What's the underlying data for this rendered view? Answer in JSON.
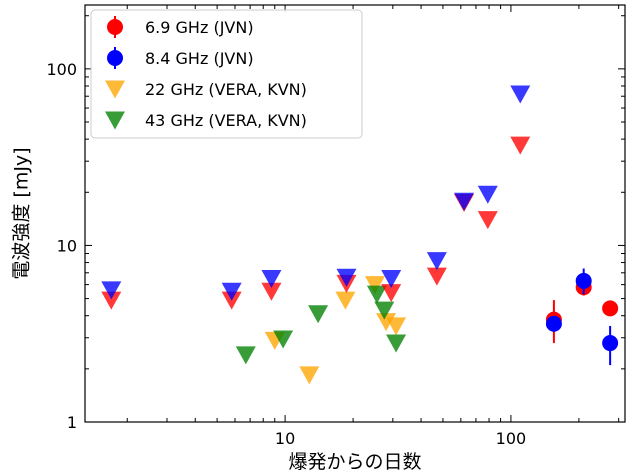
{
  "chart_data": {
    "type": "scatter",
    "xscale": "log",
    "yscale": "log",
    "xlim": [
      1.3,
      320
    ],
    "ylim": [
      1,
      230
    ],
    "xlabel": "爆発からの日数",
    "ylabel": "電波強度 [mJy]",
    "grid": false,
    "legend_position": "top-left",
    "x_ticks": [
      {
        "value": 10,
        "label": "10"
      },
      {
        "value": 100,
        "label": "100"
      }
    ],
    "y_ticks": [
      {
        "value": 1,
        "label": "1"
      },
      {
        "value": 10,
        "label": "10"
      },
      {
        "value": 100,
        "label": "100"
      }
    ],
    "series": [
      {
        "name": "6.9 GHz (JVN)",
        "color": "#ff0000",
        "marker": "circle",
        "points": [
          {
            "x": 155,
            "y": 3.8,
            "yerr": [
              1.0,
              1.1
            ],
            "kind": "detection"
          },
          {
            "x": 210,
            "y": 5.8,
            "yerr": [
              0.6,
              0.6
            ],
            "kind": "detection"
          },
          {
            "x": 275,
            "y": 4.4,
            "yerr": [
              0.25,
              0.25
            ],
            "kind": "detection"
          },
          {
            "x": 1.7,
            "y": 4.9,
            "kind": "upper_limit"
          },
          {
            "x": 5.8,
            "y": 4.9,
            "kind": "upper_limit"
          },
          {
            "x": 8.7,
            "y": 5.5,
            "kind": "upper_limit"
          },
          {
            "x": 18.7,
            "y": 6.1,
            "kind": "upper_limit"
          },
          {
            "x": 29.5,
            "y": 5.4,
            "kind": "upper_limit"
          },
          {
            "x": 47,
            "y": 6.7,
            "kind": "upper_limit"
          },
          {
            "x": 62,
            "y": 17.5,
            "kind": "upper_limit"
          },
          {
            "x": 79,
            "y": 14,
            "kind": "upper_limit"
          },
          {
            "x": 110,
            "y": 37,
            "kind": "upper_limit"
          }
        ]
      },
      {
        "name": "8.4 GHz (JVN)",
        "color": "#0000ff",
        "marker": "circle",
        "points": [
          {
            "x": 155,
            "y": 3.6,
            "yerr": [
              0.35,
              0.35
            ],
            "kind": "detection"
          },
          {
            "x": 210,
            "y": 6.3,
            "yerr": [
              1.0,
              1.1
            ],
            "kind": "detection"
          },
          {
            "x": 275,
            "y": 2.8,
            "yerr": [
              0.7,
              0.7
            ],
            "kind": "detection"
          },
          {
            "x": 1.7,
            "y": 5.6,
            "kind": "upper_limit"
          },
          {
            "x": 5.8,
            "y": 5.5,
            "kind": "upper_limit"
          },
          {
            "x": 8.7,
            "y": 6.5,
            "kind": "upper_limit"
          },
          {
            "x": 18.7,
            "y": 6.6,
            "kind": "upper_limit"
          },
          {
            "x": 29.5,
            "y": 6.5,
            "kind": "upper_limit"
          },
          {
            "x": 47,
            "y": 8.2,
            "kind": "upper_limit"
          },
          {
            "x": 62,
            "y": 17.8,
            "kind": "upper_limit"
          },
          {
            "x": 79,
            "y": 19.5,
            "kind": "upper_limit"
          },
          {
            "x": 110,
            "y": 72,
            "kind": "upper_limit"
          }
        ]
      },
      {
        "name": "22 GHz (VERA, KVN)",
        "color": "#ffa500",
        "marker": "triangle_down",
        "points": [
          {
            "x": 9.0,
            "y": 2.9,
            "kind": "upper_limit"
          },
          {
            "x": 12.8,
            "y": 1.85,
            "kind": "upper_limit"
          },
          {
            "x": 18.5,
            "y": 4.9,
            "kind": "upper_limit"
          },
          {
            "x": 25,
            "y": 6.0,
            "kind": "upper_limit"
          },
          {
            "x": 28,
            "y": 3.7,
            "kind": "upper_limit"
          },
          {
            "x": 31,
            "y": 3.5,
            "kind": "upper_limit"
          }
        ]
      },
      {
        "name": "43 GHz (VERA, KVN)",
        "color": "#008000",
        "marker": "triangle_down",
        "points": [
          {
            "x": 6.7,
            "y": 2.4,
            "kind": "upper_limit"
          },
          {
            "x": 9.8,
            "y": 2.95,
            "kind": "upper_limit"
          },
          {
            "x": 14,
            "y": 4.1,
            "kind": "upper_limit"
          },
          {
            "x": 25.5,
            "y": 5.3,
            "kind": "upper_limit"
          },
          {
            "x": 27.5,
            "y": 4.3,
            "kind": "upper_limit"
          },
          {
            "x": 31,
            "y": 2.8,
            "kind": "upper_limit"
          }
        ]
      }
    ]
  }
}
